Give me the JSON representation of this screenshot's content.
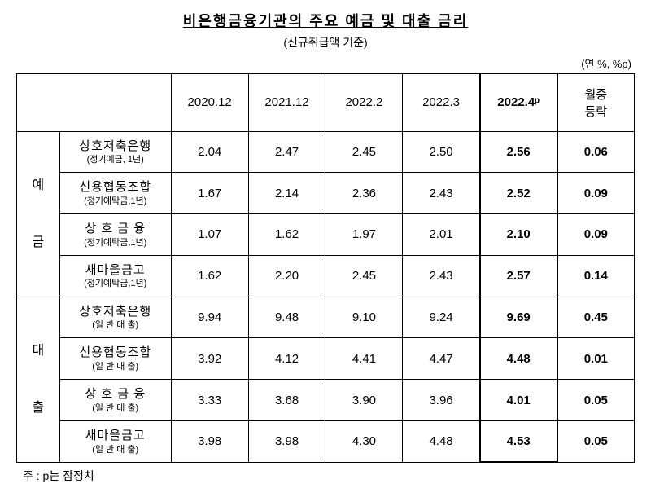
{
  "title": "비은행금융기관의 주요 예금 및 대출 금리",
  "subtitle": "(신규취급액 기준)",
  "unit": "(연 %, %p)",
  "columns": [
    "2020.12",
    "2021.12",
    "2022.2",
    "2022.3",
    "2022.4ᵖ",
    "월중\n등락"
  ],
  "categories": [
    {
      "label": "예\n\n금"
    },
    {
      "label": "대\n\n출"
    }
  ],
  "rows": [
    {
      "group": 0,
      "item": "상호저축은행",
      "sub": "(정기예금, 1년)",
      "vals": [
        "2.04",
        "2.47",
        "2.45",
        "2.50",
        "2.56",
        "0.06"
      ]
    },
    {
      "group": 0,
      "item": "신용협동조합",
      "sub": "(정기예탁금,1년)",
      "vals": [
        "1.67",
        "2.14",
        "2.36",
        "2.43",
        "2.52",
        "0.09"
      ]
    },
    {
      "group": 0,
      "item": "상 호  금 융",
      "sub": "(정기예탁금,1년)",
      "vals": [
        "1.07",
        "1.62",
        "1.97",
        "2.01",
        "2.10",
        "0.09"
      ]
    },
    {
      "group": 0,
      "item": "새마을금고",
      "sub": "(정기예탁금,1년)",
      "vals": [
        "1.62",
        "2.20",
        "2.45",
        "2.43",
        "2.57",
        "0.14"
      ]
    },
    {
      "group": 1,
      "item": "상호저축은행",
      "sub": "(일 반 대 출)",
      "vals": [
        "9.94",
        "9.48",
        "9.10",
        "9.24",
        "9.69",
        "0.45"
      ]
    },
    {
      "group": 1,
      "item": "신용협동조합",
      "sub": "(일 반 대 출)",
      "vals": [
        "3.92",
        "4.12",
        "4.41",
        "4.47",
        "4.48",
        "0.01"
      ]
    },
    {
      "group": 1,
      "item": "상 호  금 융",
      "sub": "(일 반 대 출)",
      "vals": [
        "3.33",
        "3.68",
        "3.90",
        "3.96",
        "4.01",
        "0.05"
      ]
    },
    {
      "group": 1,
      "item": "새마을금고",
      "sub": "(일 반 대 출)",
      "vals": [
        "3.98",
        "3.98",
        "4.30",
        "4.48",
        "4.53",
        "0.05"
      ]
    }
  ],
  "footnote": "주 : p는 잠정치"
}
